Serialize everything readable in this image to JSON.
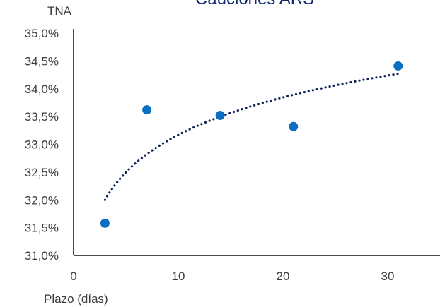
{
  "chart_data": {
    "type": "scatter",
    "title": "Cauciones ARS",
    "ylabel": "TNA",
    "xlabel": "Plazo (días)",
    "xlim": [
      0,
      35
    ],
    "ylim": [
      31.0,
      35.0
    ],
    "x_ticks": [
      0,
      10,
      20,
      30
    ],
    "x_tick_labels": [
      "0",
      "10",
      "20",
      "30"
    ],
    "y_ticks": [
      31.0,
      31.5,
      32.0,
      32.5,
      33.0,
      33.5,
      34.0,
      34.5,
      35.0
    ],
    "y_tick_labels": [
      "31,0%",
      "31,5%",
      "32,0%",
      "32,5%",
      "33,0%",
      "33,5%",
      "34,0%",
      "34,5%",
      "35,0%"
    ],
    "grid": false,
    "series": [
      {
        "type": "scatter",
        "color": "#0a6fc2",
        "points": [
          {
            "x": 3,
            "y": 31.58
          },
          {
            "x": 7,
            "y": 33.62
          },
          {
            "x": 14,
            "y": 33.52
          },
          {
            "x": 21,
            "y": 33.32
          },
          {
            "x": 31,
            "y": 34.41
          }
        ]
      },
      {
        "type": "trendline-log",
        "style": "dotted",
        "color": "#0d2457",
        "x_range": [
          3,
          31
        ],
        "y_at_start": 32.0,
        "y_at_end": 34.27
      }
    ]
  }
}
